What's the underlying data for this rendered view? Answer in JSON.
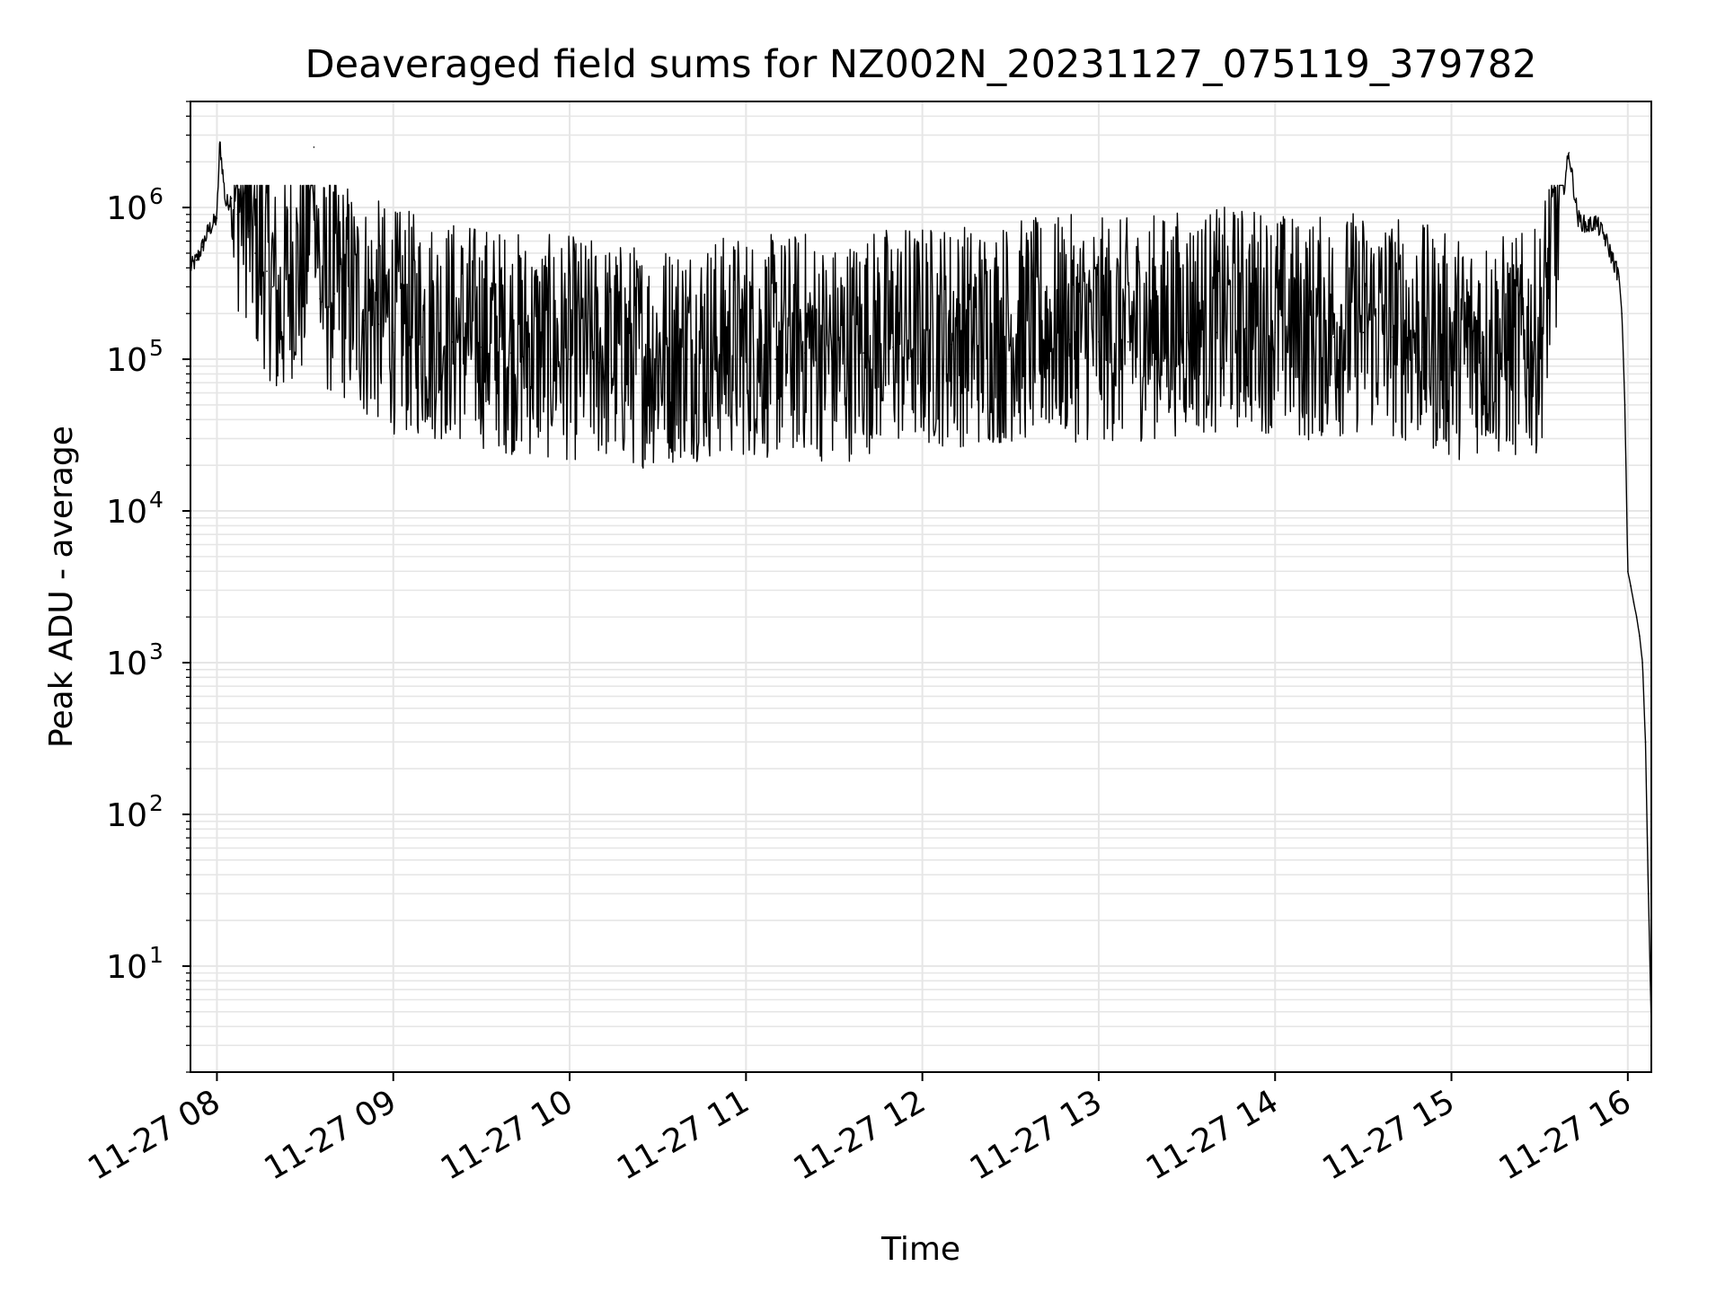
{
  "chart_data": {
    "type": "line",
    "title": "Deaveraged field sums for NZ002N_20231127_075119_379782",
    "xlabel": "Time",
    "ylabel": "Peak ADU - average",
    "yscale": "log",
    "grid": "major and minor",
    "line_color": "#000000",
    "grid_color": "#e6e6e6",
    "xlim": [
      "2023-11-27 07:51",
      "2023-11-27 16:08"
    ],
    "ylim": [
      2,
      5000000
    ],
    "x_ticks": [
      {
        "value": "2023-11-27 08:00",
        "label": "11-27 08"
      },
      {
        "value": "2023-11-27 09:00",
        "label": "11-27 09"
      },
      {
        "value": "2023-11-27 10:00",
        "label": "11-27 10"
      },
      {
        "value": "2023-11-27 11:00",
        "label": "11-27 11"
      },
      {
        "value": "2023-11-27 12:00",
        "label": "11-27 12"
      },
      {
        "value": "2023-11-27 13:00",
        "label": "11-27 13"
      },
      {
        "value": "2023-11-27 14:00",
        "label": "11-27 14"
      },
      {
        "value": "2023-11-27 15:00",
        "label": "11-27 15"
      },
      {
        "value": "2023-11-27 16:00",
        "label": "11-27 16"
      }
    ],
    "y_ticks": [
      {
        "value": 10,
        "base": "10",
        "exp": "1"
      },
      {
        "value": 100,
        "base": "10",
        "exp": "2"
      },
      {
        "value": 1000,
        "base": "10",
        "exp": "3"
      },
      {
        "value": 10000,
        "base": "10",
        "exp": "4"
      },
      {
        "value": 100000,
        "base": "10",
        "exp": "5"
      },
      {
        "value": 1000000,
        "base": "10",
        "exp": "6"
      }
    ],
    "series": [
      {
        "x": [
          "2023-11-27 07:51",
          "2023-11-27 07:53",
          "2023-11-27 07:55",
          "2023-11-27 07:57",
          "2023-11-27 08:00",
          "2023-11-27 08:01",
          "2023-11-27 08:03",
          "2023-11-27 08:05",
          "2023-11-27 08:07",
          "2023-11-27 08:09",
          "2023-11-27 08:11",
          "2023-11-27 08:13",
          "2023-11-27 08:15",
          "2023-11-27 08:17",
          "2023-11-27 08:19",
          "2023-11-27 08:21",
          "2023-11-27 08:25",
          "2023-11-27 08:30",
          "2023-11-27 08:33",
          "2023-11-27 08:35",
          "2023-11-27 08:40",
          "2023-11-27 08:45",
          "2023-11-27 08:50",
          "2023-11-27 08:55",
          "2023-11-27 09:00",
          "2023-11-27 09:10",
          "2023-11-27 09:20",
          "2023-11-27 09:30",
          "2023-11-27 09:40",
          "2023-11-27 09:50",
          "2023-11-27 10:00",
          "2023-11-27 10:10",
          "2023-11-27 10:20",
          "2023-11-27 10:30",
          "2023-11-27 10:40",
          "2023-11-27 10:50",
          "2023-11-27 11:00",
          "2023-11-27 11:10",
          "2023-11-27 11:20",
          "2023-11-27 11:30",
          "2023-11-27 11:40",
          "2023-11-27 11:50",
          "2023-11-27 12:00",
          "2023-11-27 12:10",
          "2023-11-27 12:20",
          "2023-11-27 12:30",
          "2023-11-27 12:40",
          "2023-11-27 12:50",
          "2023-11-27 13:00",
          "2023-11-27 13:10",
          "2023-11-27 13:20",
          "2023-11-27 13:30",
          "2023-11-27 13:40",
          "2023-11-27 13:50",
          "2023-11-27 14:00",
          "2023-11-27 14:10",
          "2023-11-27 14:20",
          "2023-11-27 14:30",
          "2023-11-27 14:40",
          "2023-11-27 14:50",
          "2023-11-27 15:00",
          "2023-11-27 15:10",
          "2023-11-27 15:20",
          "2023-11-27 15:30",
          "2023-11-27 15:33",
          "2023-11-27 15:36",
          "2023-11-27 15:40",
          "2023-11-27 15:43",
          "2023-11-27 15:46",
          "2023-11-27 15:49",
          "2023-11-27 15:52",
          "2023-11-27 15:55",
          "2023-11-27 15:57",
          "2023-11-27 15:58",
          "2023-11-27 15:59",
          "2023-11-27 16:00",
          "2023-11-27 16:01",
          "2023-11-27 16:02",
          "2023-11-27 16:03",
          "2023-11-27 16:04",
          "2023-11-27 16:05",
          "2023-11-27 16:06",
          "2023-11-27 16:07",
          "2023-11-27 16:08"
        ],
        "y": [
          400000,
          450000,
          550000,
          700000,
          850000,
          2700000,
          1050000,
          1150000,
          900000,
          1000000,
          700000,
          500000,
          420000,
          380000,
          300000,
          160000,
          350000,
          300000,
          2500000,
          250000,
          270000,
          230000,
          180000,
          170000,
          150000,
          140000,
          130000,
          120000,
          110000,
          100000,
          100000,
          95000,
          90000,
          90000,
          100000,
          100000,
          105000,
          100000,
          110000,
          90000,
          110000,
          120000,
          120000,
          125000,
          120000,
          130000,
          130000,
          135000,
          130000,
          130000,
          140000,
          150000,
          150000,
          160000,
          150000,
          130000,
          140000,
          150000,
          140000,
          120000,
          100000,
          110000,
          100000,
          110000,
          300000,
          700000,
          2300000,
          850000,
          750000,
          800000,
          650000,
          450000,
          350000,
          200000,
          50000,
          4000,
          3200,
          2500,
          2000,
          1500,
          1000,
          300,
          30,
          4
        ]
      }
    ]
  }
}
